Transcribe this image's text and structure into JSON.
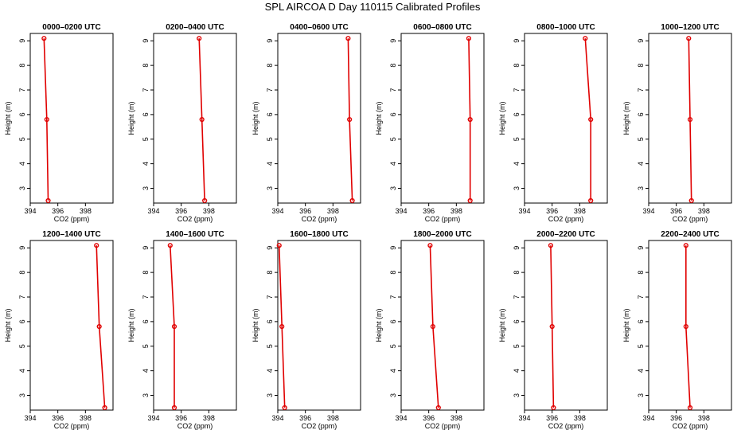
{
  "title": "SPL AIRCOA D  Day 110115  Calibrated Profiles",
  "colors": {
    "series": "#e00000",
    "frame": "#000000"
  },
  "chart_data": {
    "type": "line",
    "layout": "2 rows x 6 columns of small-multiple profiles",
    "xlabel": "CO2 (ppm)",
    "ylabel": "Height (m)",
    "xlim": [
      394,
      400
    ],
    "ylim": [
      2.4,
      9.3
    ],
    "xticks": [
      394,
      396,
      398
    ],
    "yticks": [
      3,
      4,
      5,
      6,
      7,
      8,
      9
    ],
    "heights": [
      9.1,
      5.8,
      2.5
    ],
    "grid": false,
    "panels": [
      {
        "title": "0000–0200 UTC",
        "co2": [
          395.0,
          395.2,
          395.3
        ]
      },
      {
        "title": "0200–0400 UTC",
        "co2": [
          397.3,
          397.5,
          397.7
        ]
      },
      {
        "title": "0400–0600 UTC",
        "co2": [
          399.1,
          399.2,
          399.4
        ]
      },
      {
        "title": "0600–0800 UTC",
        "co2": [
          398.9,
          399.0,
          399.0
        ]
      },
      {
        "title": "0800–1000 UTC",
        "co2": [
          398.4,
          398.8,
          398.8
        ]
      },
      {
        "title": "1000–1200 UTC",
        "co2": [
          396.9,
          397.0,
          397.1
        ]
      },
      {
        "title": "1200–1400 UTC",
        "co2": [
          398.8,
          399.0,
          399.4
        ]
      },
      {
        "title": "1400–1600 UTC",
        "co2": [
          395.2,
          395.5,
          395.5
        ]
      },
      {
        "title": "1600–1800 UTC",
        "co2": [
          394.1,
          394.3,
          394.5
        ]
      },
      {
        "title": "1800–2000 UTC",
        "co2": [
          396.1,
          396.3,
          396.7
        ]
      },
      {
        "title": "2000–2200 UTC",
        "co2": [
          395.9,
          396.0,
          396.1
        ]
      },
      {
        "title": "2200–2400 UTC",
        "co2": [
          396.7,
          396.7,
          397.0
        ]
      }
    ]
  }
}
